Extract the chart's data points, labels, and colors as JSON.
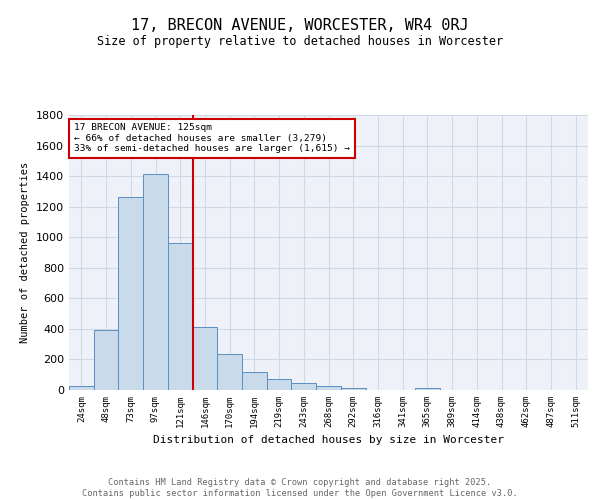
{
  "title": "17, BRECON AVENUE, WORCESTER, WR4 0RJ",
  "subtitle": "Size of property relative to detached houses in Worcester",
  "xlabel": "Distribution of detached houses by size in Worcester",
  "ylabel": "Number of detached properties",
  "bar_labels": [
    "24sqm",
    "48sqm",
    "73sqm",
    "97sqm",
    "121sqm",
    "146sqm",
    "170sqm",
    "194sqm",
    "219sqm",
    "243sqm",
    "268sqm",
    "292sqm",
    "316sqm",
    "341sqm",
    "365sqm",
    "389sqm",
    "414sqm",
    "438sqm",
    "462sqm",
    "487sqm",
    "511sqm"
  ],
  "bar_values": [
    25,
    395,
    1265,
    1415,
    960,
    415,
    235,
    120,
    70,
    45,
    25,
    10,
    0,
    0,
    15,
    0,
    0,
    0,
    0,
    0,
    0
  ],
  "bar_color": "#c9daea",
  "bar_edge_color": "#5a8fc2",
  "grid_color": "#d0d8e8",
  "background_color": "#eef2f8",
  "vline_x": 4.5,
  "vline_color": "#cc0000",
  "annotation_line1": "17 BRECON AVENUE: 125sqm",
  "annotation_line2": "← 66% of detached houses are smaller (3,279)",
  "annotation_line3": "33% of semi-detached houses are larger (1,615) →",
  "annotation_box_color": "#cc0000",
  "ylim": [
    0,
    1800
  ],
  "yticks": [
    0,
    200,
    400,
    600,
    800,
    1000,
    1200,
    1400,
    1600,
    1800
  ],
  "footer_line1": "Contains HM Land Registry data © Crown copyright and database right 2025.",
  "footer_line2": "Contains public sector information licensed under the Open Government Licence v3.0."
}
